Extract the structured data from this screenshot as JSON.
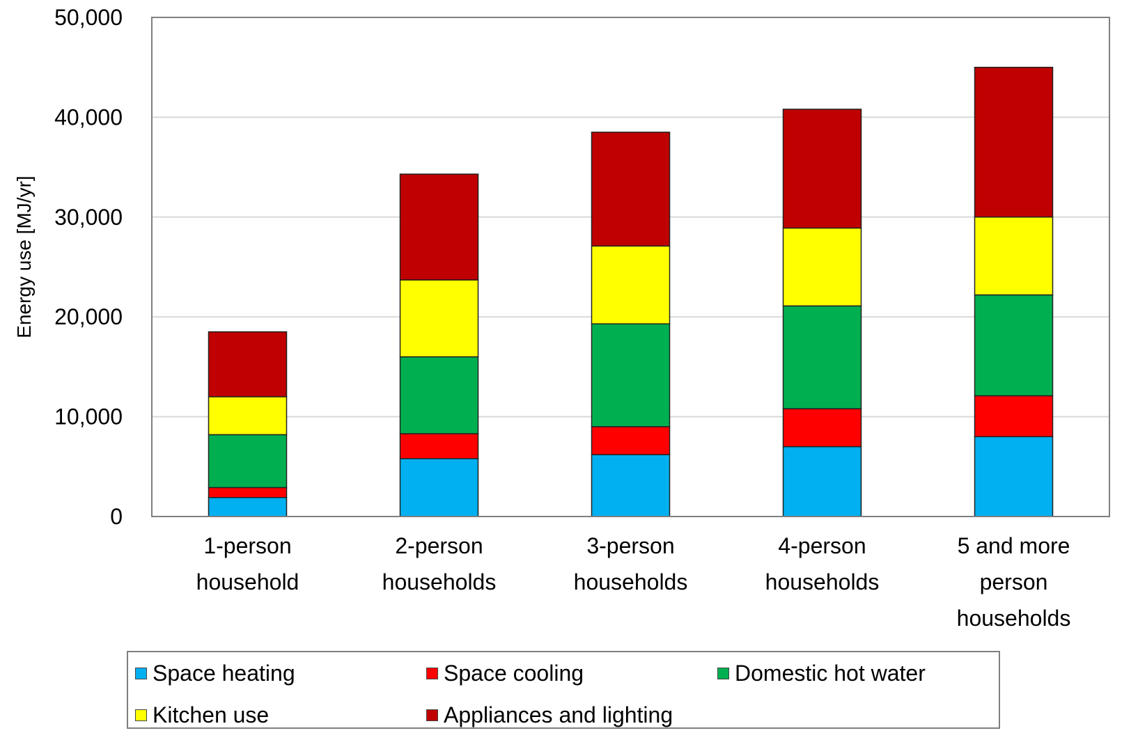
{
  "chart_data": {
    "type": "bar",
    "stacked": true,
    "ylabel": "Energy use [MJ/yr]",
    "ylim": [
      0,
      50000
    ],
    "yticks": [
      "0",
      "10,000",
      "20,000",
      "30,000",
      "40,000",
      "50,000"
    ],
    "grid": true,
    "legend_position": "bottom",
    "categories": [
      [
        "1-person",
        "household"
      ],
      [
        "2-person",
        "households"
      ],
      [
        "3-person",
        "households"
      ],
      [
        "4-person",
        "households"
      ],
      [
        "5 and more",
        "person",
        "households"
      ]
    ],
    "series": [
      {
        "name": "Space heating",
        "color": "#00b0f0",
        "values": [
          1900,
          5800,
          6200,
          7000,
          8000
        ]
      },
      {
        "name": "Space cooling",
        "color": "#ff0000",
        "values": [
          1000,
          2500,
          2800,
          3800,
          4100
        ]
      },
      {
        "name": "Domestic hot water",
        "color": "#00b050",
        "values": [
          5300,
          7700,
          10300,
          10300,
          10100
        ]
      },
      {
        "name": "Kitchen use",
        "color": "#ffff00",
        "values": [
          3800,
          7700,
          7800,
          7800,
          7800
        ]
      },
      {
        "name": "Appliances and lighting",
        "color": "#c00000",
        "values": [
          6500,
          10600,
          11400,
          11900,
          15000
        ]
      }
    ]
  }
}
